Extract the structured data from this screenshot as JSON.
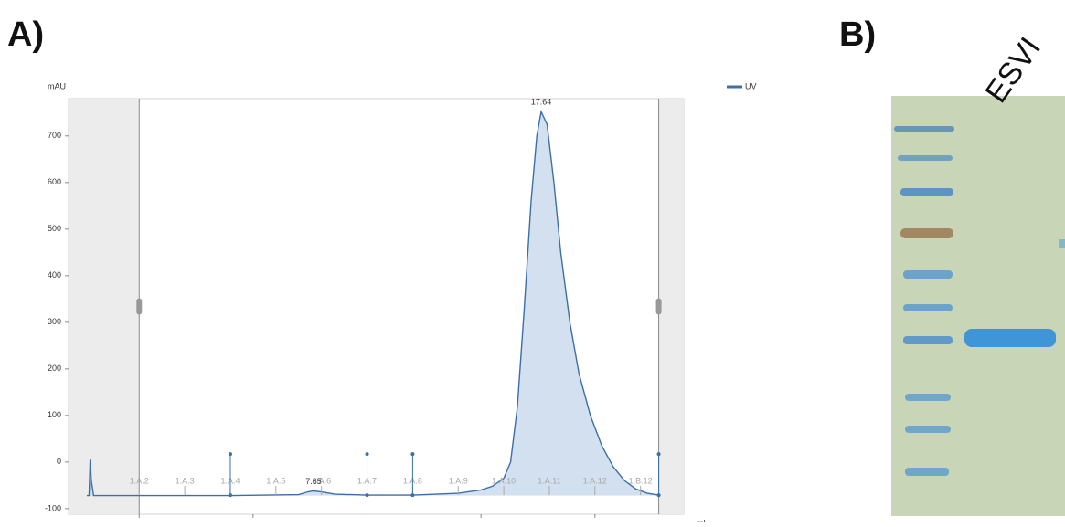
{
  "panel_a": "A)",
  "panel_b": "B)",
  "lane_label": "ESVI",
  "chart_data": {
    "type": "area",
    "y_label": "mAU",
    "x_label": "ml",
    "x": [
      -2.3,
      -2.2,
      -2.15,
      -2.1,
      -2.0,
      0,
      4,
      7.0,
      7.4,
      7.65,
      8.0,
      8.6,
      10,
      12,
      14,
      15,
      15.5,
      16,
      16.3,
      16.6,
      16.9,
      17.2,
      17.45,
      17.64,
      17.9,
      18.2,
      18.5,
      18.9,
      19.3,
      19.8,
      20.3,
      20.8,
      21.3,
      21.8,
      22.3,
      22.8
    ],
    "series": [
      {
        "name": "UV",
        "color": "#3d6fa6",
        "values": [
          -72,
          -72,
          5,
          -40,
          -72,
          -72,
          -72,
          -70,
          -64,
          -62,
          -64,
          -69,
          -71,
          -71,
          -67,
          -60,
          -52,
          -35,
          0,
          120,
          330,
          560,
          700,
          752,
          725,
          600,
          450,
          300,
          190,
          100,
          35,
          -10,
          -40,
          -58,
          -67,
          -71
        ]
      }
    ],
    "annotations": [
      {
        "x": 17.64,
        "y": 752,
        "label": "17.64"
      },
      {
        "x": 7.65,
        "y": -62,
        "label": "7.65"
      }
    ],
    "fractions": {
      "x": [
        0,
        2,
        4,
        6,
        8,
        10,
        12,
        14,
        16,
        18,
        20,
        22
      ],
      "labels": [
        "1.A.2",
        "1.A.3",
        "1.A.4",
        "1.A.5",
        "1.A.6",
        "1.A.7",
        "1.A.8",
        "1.A.9",
        "1.A.10",
        "1.A.11",
        "1.A.12",
        "1.B.12"
      ]
    },
    "events": [
      4,
      10,
      12,
      22.8
    ],
    "selection": [
      0,
      22.8
    ],
    "xlim": [
      -3.1,
      23.9
    ],
    "ylim": [
      -112,
      780
    ],
    "xticks": [
      0,
      5,
      10,
      15,
      20
    ],
    "yticks": [
      -100,
      0,
      100,
      200,
      300,
      400,
      500,
      600,
      700
    ],
    "legend": "top-right",
    "fill_color": "#d3e0ef"
  }
}
